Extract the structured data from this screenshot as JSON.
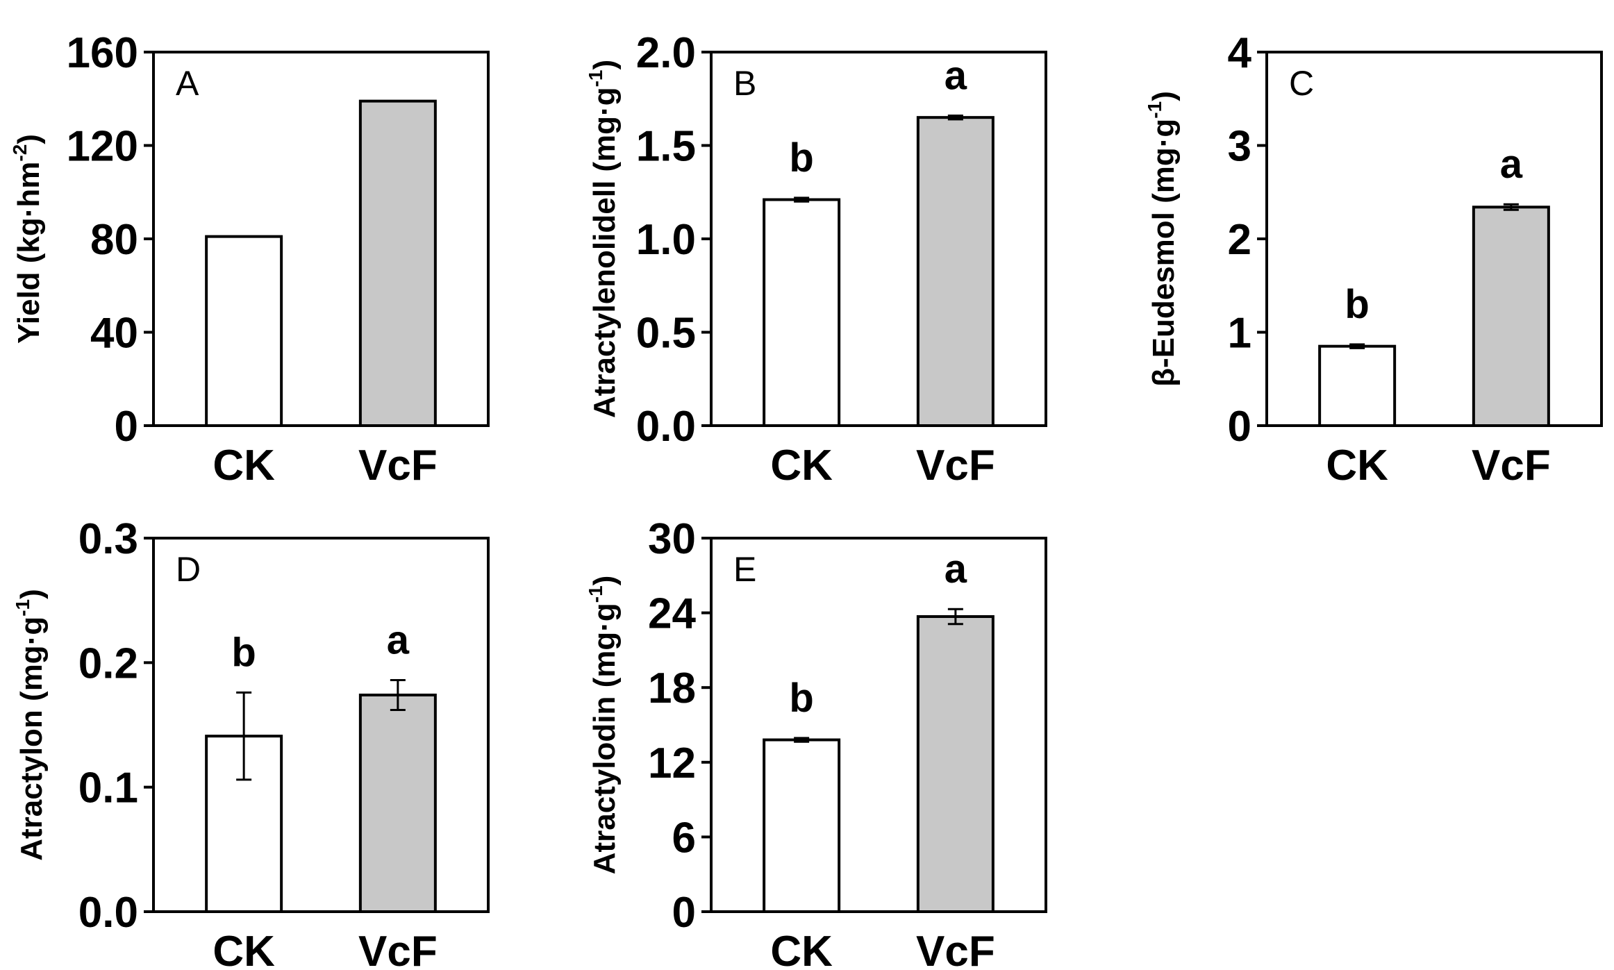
{
  "colors": {
    "ck_fill": "#ffffff",
    "vcf_fill": "#c8c8c8",
    "stroke": "#000000"
  },
  "chart_data": [
    {
      "type": "bar",
      "panel": "A",
      "categories": [
        "CK",
        "VcF"
      ],
      "values": [
        81,
        139
      ],
      "errors": [
        0,
        0
      ],
      "letters": [
        "",
        ""
      ],
      "ylim": [
        0,
        160
      ],
      "yticks": [
        0,
        40,
        80,
        120,
        160
      ],
      "ytick_labels": [
        "0",
        "40",
        "80",
        "120",
        "160"
      ],
      "ylabel": {
        "main": "Yield (kg·hm",
        "sup": "-2",
        "end": ")"
      }
    },
    {
      "type": "bar",
      "panel": "B",
      "categories": [
        "CK",
        "VcF"
      ],
      "values": [
        1.21,
        1.65
      ],
      "errors": [
        0.01,
        0.01
      ],
      "letters": [
        "b",
        "a"
      ],
      "ylim": [
        0,
        2.0
      ],
      "yticks": [
        0,
        0.5,
        1.0,
        1.5,
        2.0
      ],
      "ytick_labels": [
        "0.0",
        "0.5",
        "1.0",
        "1.5",
        "2.0"
      ],
      "ylabel": {
        "main": "Atractylenolidell (mg·g",
        "sup": "-1",
        "end": ")"
      }
    },
    {
      "type": "bar",
      "panel": "C",
      "categories": [
        "CK",
        "VcF"
      ],
      "values": [
        0.85,
        2.34
      ],
      "errors": [
        0.02,
        0.03
      ],
      "letters": [
        "b",
        "a"
      ],
      "ylim": [
        0,
        4
      ],
      "yticks": [
        0,
        1,
        2,
        3,
        4
      ],
      "ytick_labels": [
        "0",
        "1",
        "2",
        "3",
        "4"
      ],
      "ylabel": {
        "main": "β-Eudesmol (mg·g",
        "sup": "-1",
        "end": ")"
      }
    },
    {
      "type": "bar",
      "panel": "D",
      "categories": [
        "CK",
        "VcF"
      ],
      "values": [
        0.141,
        0.174
      ],
      "errors": [
        0.035,
        0.012
      ],
      "letters": [
        "b",
        "a"
      ],
      "ylim": [
        0,
        0.3
      ],
      "yticks": [
        0,
        0.1,
        0.2,
        0.3
      ],
      "ytick_labels": [
        "0.0",
        "0.1",
        "0.2",
        "0.3"
      ],
      "ylabel": {
        "main": "Atractylon (mg·g",
        "sup": "-1",
        "end": ")"
      }
    },
    {
      "type": "bar",
      "panel": "E",
      "categories": [
        "CK",
        "VcF"
      ],
      "values": [
        13.8,
        23.7
      ],
      "errors": [
        0.15,
        0.6
      ],
      "letters": [
        "b",
        "a"
      ],
      "ylim": [
        0,
        30
      ],
      "yticks": [
        0,
        6,
        12,
        18,
        24,
        30
      ],
      "ytick_labels": [
        "0",
        "6",
        "12",
        "18",
        "24",
        "30"
      ],
      "ylabel": {
        "main": "Atractylodin (mg·g",
        "sup": "-1",
        "end": ")"
      }
    }
  ]
}
